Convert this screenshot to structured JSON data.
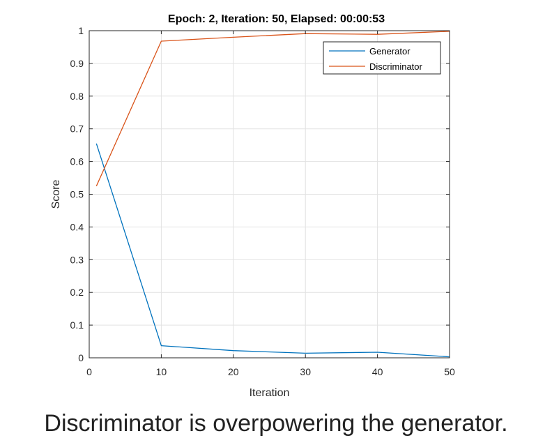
{
  "chart_data": {
    "type": "line",
    "title": "Epoch: 2, Iteration: 50, Elapsed: 00:00:53",
    "xlabel": "Iteration",
    "ylabel": "Score",
    "xlim": [
      0,
      50
    ],
    "ylim": [
      0,
      1
    ],
    "xticks": [
      0,
      10,
      20,
      30,
      40,
      50
    ],
    "yticks": [
      0,
      0.1,
      0.2,
      0.3,
      0.4,
      0.5,
      0.6,
      0.7,
      0.8,
      0.9,
      1
    ],
    "grid": true,
    "legend_position": "top-right",
    "series": [
      {
        "name": "Generator",
        "color": "#0072bd",
        "x": [
          1,
          10,
          20,
          30,
          40,
          50
        ],
        "y": [
          0.655,
          0.037,
          0.022,
          0.014,
          0.017,
          0.003
        ]
      },
      {
        "name": "Discriminator",
        "color": "#d95319",
        "x": [
          1,
          10,
          20,
          30,
          40,
          50
        ],
        "y": [
          0.525,
          0.968,
          0.98,
          0.991,
          0.989,
          0.998
        ]
      }
    ]
  },
  "caption": "Discriminator is overpowering the generator."
}
